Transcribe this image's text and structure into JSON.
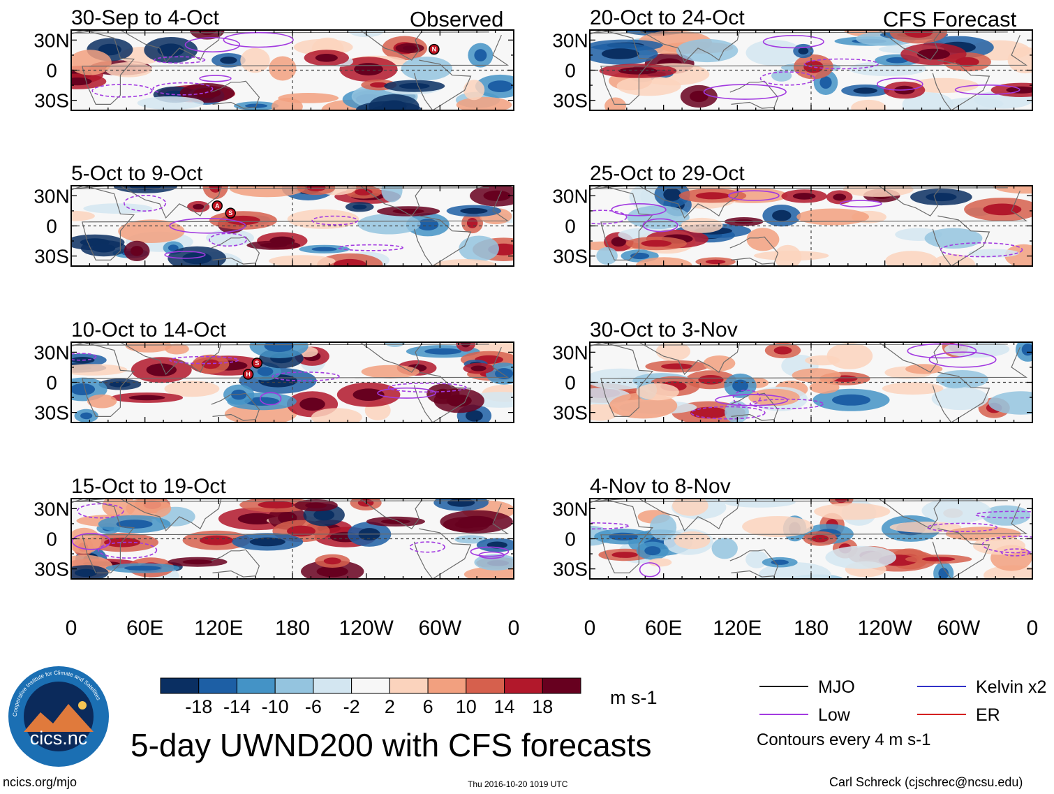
{
  "chart_data": {
    "type": "heatmap",
    "title": "5-day UWND200 with CFS forecasts",
    "variable": "UWND200",
    "units": "m s-1",
    "observed_label": "Observed",
    "forecast_label": "CFS Forecast",
    "lon_ticks": [
      "0",
      "60E",
      "120E",
      "180",
      "120W",
      "60W",
      "0"
    ],
    "lat_ticks": [
      "30N",
      "0",
      "30S"
    ],
    "panels": [
      {
        "period": "30-Sep to 4-Oct",
        "source": "observed",
        "storms": [
          "N"
        ]
      },
      {
        "period": "5-Oct to 9-Oct",
        "source": "observed",
        "storms": [
          "A",
          "S"
        ]
      },
      {
        "period": "10-Oct to 14-Oct",
        "source": "observed",
        "storms": [
          "S",
          "H"
        ]
      },
      {
        "period": "15-Oct to 19-Oct",
        "source": "observed",
        "storms": []
      },
      {
        "period": "20-Oct to 24-Oct",
        "source": "forecast",
        "storms": []
      },
      {
        "period": "25-Oct to 29-Oct",
        "source": "forecast",
        "storms": []
      },
      {
        "period": "30-Oct to 3-Nov",
        "source": "forecast",
        "storms": []
      },
      {
        "period": "4-Nov to 8-Nov",
        "source": "forecast",
        "storms": []
      }
    ],
    "colorbar": {
      "labels": [
        "-18",
        "-14",
        "-10",
        "-6",
        "-2",
        "2",
        "6",
        "10",
        "14",
        "18"
      ],
      "colors": [
        "#0a2f62",
        "#1d5fa5",
        "#4493c6",
        "#94c4df",
        "#d3e6f1",
        "#f7f7f7",
        "#fbd3bd",
        "#f2a07f",
        "#d6604d",
        "#b2182b",
        "#67001f"
      ]
    },
    "legend": [
      {
        "label": "MJO",
        "color": "#000000"
      },
      {
        "label": "Kelvin x2",
        "color": "#3131c8"
      },
      {
        "label": "Low",
        "color": "#a23ae0"
      },
      {
        "label": "ER",
        "color": "#d42020"
      }
    ],
    "contour_note": "Contours every 4 m s-1"
  },
  "logo": {
    "text": "cics.nc",
    "ring_text": "Cooperative Institute for Climate and Satellites"
  },
  "footer": {
    "site": "ncics.org/mjo",
    "timestamp": "Thu 2016-10-20 1019 UTC",
    "author": "Carl Schreck (cjschrec@ncsu.edu)"
  }
}
